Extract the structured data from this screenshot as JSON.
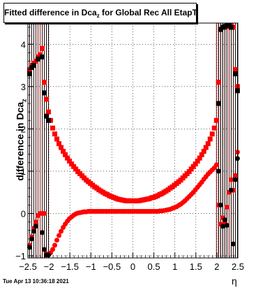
{
  "title": "Fitted difference in Dca",
  "title_sub": "z",
  "title_rest": " for Global Rec All EtapT",
  "timestamp": "Tue Apr 13 10:36:18 2021",
  "chart_data": {
    "type": "scatter",
    "xlabel": "η",
    "ylabel": "difference in Dca",
    "ylabel_sub": "z",
    "xlim": [
      -2.5,
      2.5
    ],
    "ylim": [
      -1.05,
      4.5
    ],
    "xticks": [
      -2.5,
      -2,
      -1.5,
      -1,
      -0.5,
      0,
      0.5,
      1,
      1.5,
      2,
      2.5
    ],
    "xtick_labels": [
      "−2.5",
      "−2",
      "−1.5",
      "−1",
      "−0.5",
      "0",
      "0.5",
      "1",
      "1.5",
      "2",
      "2.5"
    ],
    "yticks": [
      -1,
      0,
      1,
      2,
      3,
      4
    ],
    "ytick_labels": [
      "−1",
      "0",
      "1",
      "2",
      "3",
      "4"
    ],
    "grid": true,
    "colors": {
      "series_red": "#ff0000",
      "series_black": "#000000",
      "errorbar": "#8b0000"
    },
    "series": [
      {
        "marker": "square",
        "color": "#ff0000",
        "x": [
          -2.46,
          -2.41,
          -2.36,
          -2.31,
          -2.26,
          -2.21,
          -2.16,
          -2.11,
          -2.06,
          -2.01,
          -1.96,
          -1.91,
          -1.86,
          -1.81,
          -1.76,
          -1.71,
          -1.66,
          -1.61,
          -1.56,
          -1.51,
          -1.46,
          -1.41,
          -1.36,
          -1.31,
          -1.26,
          -1.21,
          -1.16,
          -1.11,
          -1.06,
          -1.01,
          -0.96,
          -0.91,
          -0.86,
          -0.81,
          -0.76,
          -0.71,
          -0.66,
          -0.61,
          -0.56,
          -0.51,
          -0.46,
          -0.41,
          -0.36,
          -0.31,
          -0.26,
          -0.21,
          -0.16,
          -0.11,
          -0.06,
          -0.01,
          0.04,
          0.09,
          0.14,
          0.19,
          0.24,
          0.29,
          0.34,
          0.39,
          0.44,
          0.49,
          0.54,
          0.59,
          0.64,
          0.69,
          0.74,
          0.79,
          0.84,
          0.89,
          0.94,
          0.99,
          1.04,
          1.09,
          1.14,
          1.19,
          1.24,
          1.29,
          1.34,
          1.39,
          1.44,
          1.49,
          1.54,
          1.59,
          1.64,
          1.69,
          1.74,
          1.79,
          1.84,
          1.89,
          1.94,
          1.99,
          2.04,
          2.09,
          2.14,
          2.19,
          2.24,
          2.29,
          2.34,
          2.39,
          2.44,
          2.49
        ],
        "y": [
          3.4,
          3.5,
          3.55,
          3.6,
          3.7,
          3.75,
          3.9,
          3.1,
          2.7,
          2.4,
          2.2,
          2.02,
          1.88,
          1.76,
          1.65,
          1.56,
          1.47,
          1.39,
          1.31,
          1.24,
          1.17,
          1.11,
          1.05,
          0.99,
          0.94,
          0.89,
          0.84,
          0.79,
          0.75,
          0.71,
          0.67,
          0.63,
          0.6,
          0.56,
          0.53,
          0.5,
          0.47,
          0.45,
          0.42,
          0.4,
          0.38,
          0.36,
          0.34,
          0.33,
          0.32,
          0.31,
          0.3,
          0.3,
          0.3,
          0.3,
          0.3,
          0.3,
          0.3,
          0.31,
          0.32,
          0.33,
          0.34,
          0.35,
          0.37,
          0.38,
          0.4,
          0.42,
          0.45,
          0.47,
          0.5,
          0.53,
          0.56,
          0.6,
          0.63,
          0.67,
          0.71,
          0.75,
          0.79,
          0.84,
          0.89,
          0.94,
          0.99,
          1.05,
          1.11,
          1.17,
          1.24,
          1.31,
          1.39,
          1.47,
          1.56,
          1.65,
          1.76,
          1.88,
          2.02,
          2.2,
          3.1,
          4.35,
          4.4,
          4.4,
          4.42,
          4.45,
          4.45,
          4.4,
          3.4,
          3.0
        ]
      },
      {
        "marker": "square",
        "color": "#000000",
        "x": [
          -2.46,
          -2.41,
          -2.36,
          -2.26,
          -2.16,
          -2.11,
          -2.06,
          -2.01,
          2.04,
          2.09,
          2.14,
          2.19,
          2.24,
          2.29,
          2.34,
          2.44,
          2.49
        ],
        "y": [
          3.3,
          3.45,
          3.5,
          3.65,
          3.7,
          2.85,
          2.3,
          2.2,
          2.6,
          4.35,
          4.4,
          4.42,
          4.45,
          4.45,
          4.4,
          3.3,
          2.9
        ]
      },
      {
        "marker": "circle",
        "color": "#ff0000",
        "x": [
          -2.46,
          -2.41,
          -2.36,
          -2.31,
          -2.26,
          -2.21,
          -2.16,
          -2.11,
          -2.06,
          -2.01,
          -1.96,
          -1.91,
          -1.86,
          -1.81,
          -1.76,
          -1.71,
          -1.66,
          -1.61,
          -1.56,
          -1.51,
          -1.46,
          -1.41,
          -1.36,
          -1.31,
          -1.26,
          -1.21,
          -1.16,
          -1.11,
          -1.06,
          -1.01,
          -0.96,
          -0.91,
          -0.86,
          -0.81,
          -0.76,
          -0.71,
          -0.66,
          -0.61,
          -0.56,
          -0.51,
          -0.46,
          -0.41,
          -0.36,
          -0.31,
          -0.26,
          -0.21,
          -0.16,
          -0.11,
          -0.06,
          -0.01,
          0.04,
          0.09,
          0.14,
          0.19,
          0.24,
          0.29,
          0.34,
          0.39,
          0.44,
          0.49,
          0.54,
          0.59,
          0.64,
          0.69,
          0.74,
          0.79,
          0.84,
          0.89,
          0.94,
          0.99,
          1.04,
          1.09,
          1.14,
          1.19,
          1.24,
          1.29,
          1.34,
          1.39,
          1.44,
          1.49,
          1.54,
          1.59,
          1.64,
          1.69,
          1.74,
          1.79,
          1.84,
          1.89,
          1.94,
          1.99,
          2.04,
          2.09,
          2.14,
          2.19,
          2.24,
          2.29,
          2.34,
          2.39,
          2.44,
          2.49
        ],
        "y": [
          -0.75,
          -0.55,
          -0.35,
          -0.2,
          -0.05,
          0.0,
          0.0,
          0.0,
          -0.95,
          -0.97,
          -0.93,
          -0.85,
          -0.75,
          -0.63,
          -0.52,
          -0.42,
          -0.33,
          -0.25,
          -0.18,
          -0.12,
          -0.08,
          -0.04,
          -0.01,
          0.01,
          0.02,
          0.03,
          0.04,
          0.04,
          0.05,
          0.05,
          0.05,
          0.05,
          0.05,
          0.05,
          0.05,
          0.05,
          0.05,
          0.05,
          0.05,
          0.05,
          0.05,
          0.05,
          0.05,
          0.05,
          0.05,
          0.05,
          0.05,
          0.05,
          0.05,
          0.05,
          0.05,
          0.05,
          0.05,
          0.05,
          0.05,
          0.05,
          0.05,
          0.05,
          0.05,
          0.05,
          0.05,
          0.05,
          0.06,
          0.06,
          0.07,
          0.08,
          0.09,
          0.1,
          0.12,
          0.14,
          0.16,
          0.19,
          0.22,
          0.26,
          0.3,
          0.35,
          0.4,
          0.45,
          0.5,
          0.56,
          0.62,
          0.68,
          0.74,
          0.81,
          0.87,
          0.93,
          0.98,
          1.03,
          1.08,
          1.15,
          0.2,
          -0.25,
          -0.1,
          -0.2,
          0.15,
          0.5,
          0.8,
          0.55,
          0.9,
          1.45
        ]
      },
      {
        "marker": "circle",
        "color": "#000000",
        "x": [
          -2.46,
          -2.41,
          -2.36,
          -2.31,
          -2.16,
          -2.11,
          -2.06,
          -2.01,
          2.04,
          2.09,
          2.14,
          2.19,
          2.24,
          2.34,
          2.39,
          2.44,
          2.49
        ],
        "y": [
          -0.8,
          -0.6,
          -0.42,
          -0.3,
          -0.45,
          -0.85,
          -0.98,
          -0.98,
          1.0,
          0.2,
          -0.3,
          -0.15,
          -0.28,
          0.55,
          -0.72,
          0.8,
          1.3
        ]
      }
    ]
  }
}
